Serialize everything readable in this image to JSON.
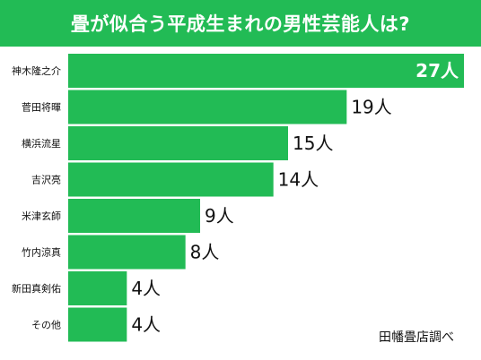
{
  "header": {
    "title": "畳が似合う平成生まれの男性芸能人は?",
    "background": "#22bb55"
  },
  "source": "田幡畳店調べ",
  "chart_data": {
    "type": "bar",
    "orientation": "horizontal",
    "categories": [
      "神木隆之介",
      "菅田将暉",
      "横浜流星",
      "吉沢亮",
      "米津玄師",
      "竹内涼真",
      "新田真剣佑",
      "その他"
    ],
    "values": [
      27,
      19,
      15,
      14,
      9,
      8,
      4,
      4
    ],
    "value_labels": [
      "27人",
      "19人",
      "15人",
      "14人",
      "9人",
      "8人",
      "4人",
      "4人"
    ],
    "unit": "人",
    "xlim": [
      0,
      27
    ],
    "bar_color": "#22bb55",
    "grid": false,
    "legend": "none"
  }
}
